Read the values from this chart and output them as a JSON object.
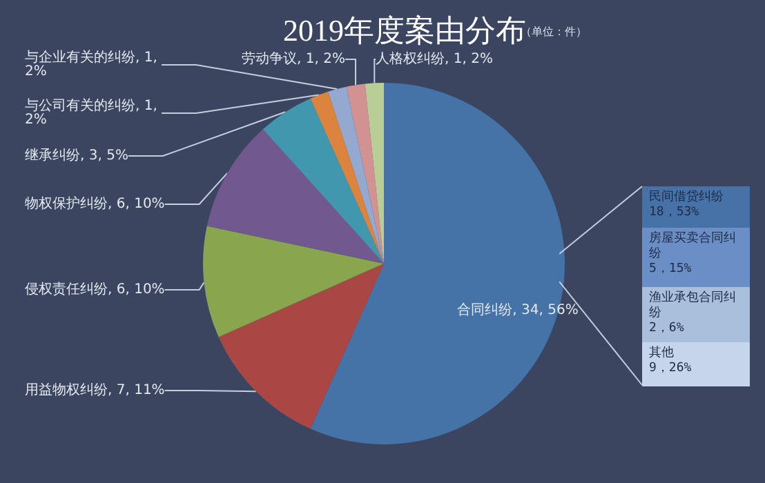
{
  "chart_data": [
    {
      "type": "pie",
      "title": "2019年度案由分布",
      "subtitle": "（单位：件）",
      "categories": [
        "合同纠纷",
        "用益物权纠纷",
        "侵权责任纠纷",
        "物权保护纠纷",
        "继承纠纷",
        "与公司有关的纠纷",
        "与企业有关的纠纷",
        "劳动争议",
        "人格权纠纷"
      ],
      "values": [
        34,
        7,
        6,
        6,
        3,
        1,
        1,
        1,
        1
      ],
      "colors": [
        "#4673a7",
        "#a84744",
        "#89a54e",
        "#71588f",
        "#4197ad",
        "#db843d",
        "#93a9cf",
        "#d19392",
        "#b9cd96"
      ],
      "value_labels": [
        "34, 56%",
        "7, 11%",
        "6, 10%",
        "6, 10%",
        "3, 5%",
        "1, 2%",
        "1, 2%",
        "1, 2%",
        "1, 2%"
      ]
    },
    {
      "type": "other",
      "categories": [
        "民间借贷纠纷",
        "房屋买卖合同纠纷",
        "渔业承包合同纠纷",
        "其他"
      ],
      "value_labels": [
        "18，53%",
        "5，15%",
        "2，6%",
        "9，26%"
      ],
      "colors": [
        "#4672a8",
        "#6a8fc6",
        "#a9bfdc",
        "#c6d5ea"
      ]
    }
  ]
}
